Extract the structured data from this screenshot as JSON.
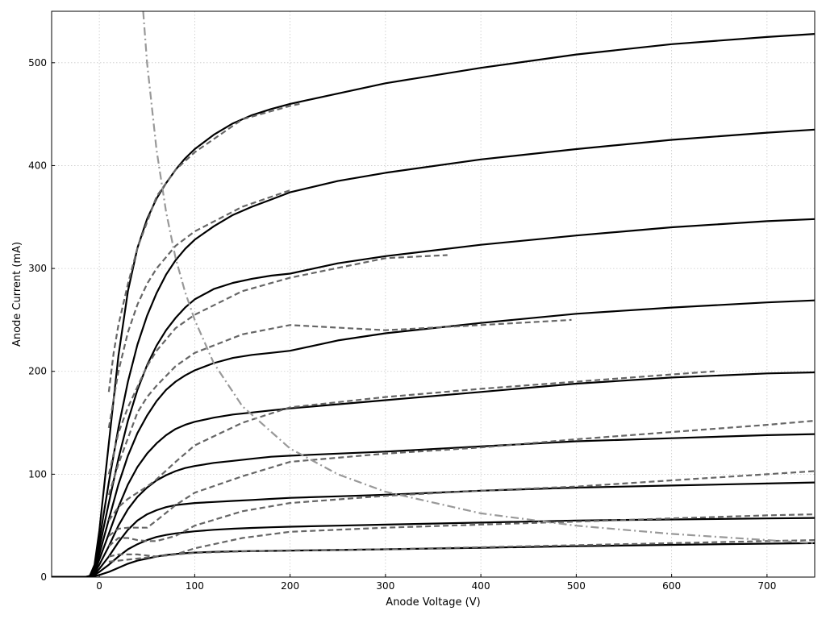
{
  "chart_data": {
    "type": "line",
    "title": "",
    "xlabel": "Anode Voltage (V)",
    "ylabel": "Anode Current (mA)",
    "xlim": [
      -50,
      750
    ],
    "ylim": [
      0,
      550
    ],
    "xticks": [
      0,
      100,
      200,
      300,
      400,
      500,
      600,
      700
    ],
    "yticks": [
      0,
      100,
      200,
      300,
      400,
      500
    ],
    "grid": true,
    "legend": "none",
    "colors": {
      "model": "#000000",
      "measured": "#666666",
      "dissipation": "#999999"
    },
    "series": [
      {
        "style": "model",
        "x": [
          -50,
          -20,
          -15,
          -10,
          -5,
          0,
          10,
          20,
          30,
          40,
          50,
          60,
          70,
          80,
          90,
          100,
          120,
          140,
          160,
          180,
          200,
          250,
          300,
          400,
          500,
          600,
          700,
          750
        ],
        "values": [
          0,
          0,
          0,
          0.3,
          1,
          2,
          5,
          9,
          13,
          16,
          18,
          20,
          21.5,
          22.5,
          23.2,
          23.8,
          24.5,
          25,
          25.3,
          25.5,
          25.7,
          26.3,
          27,
          28.5,
          30,
          31.3,
          32.5,
          33
        ]
      },
      {
        "style": "model",
        "x": [
          -50,
          -20,
          -15,
          -10,
          -5,
          0,
          10,
          20,
          30,
          40,
          50,
          60,
          70,
          80,
          90,
          100,
          120,
          140,
          160,
          180,
          200,
          250,
          300,
          400,
          500,
          600,
          700,
          750
        ],
        "values": [
          0,
          0,
          0,
          0.4,
          2,
          5,
          12,
          20,
          27,
          32,
          36,
          39,
          41,
          42.5,
          43.5,
          44.5,
          46,
          47,
          47.8,
          48.4,
          49,
          50,
          51,
          53,
          55,
          56,
          57,
          57.5
        ]
      },
      {
        "style": "model",
        "x": [
          -50,
          -20,
          -15,
          -10,
          -5,
          0,
          10,
          20,
          30,
          40,
          50,
          60,
          70,
          80,
          90,
          100,
          120,
          140,
          160,
          180,
          200,
          250,
          300,
          400,
          500,
          600,
          700,
          750
        ],
        "values": [
          0,
          0,
          0,
          0.5,
          3,
          8,
          20,
          34,
          46,
          55,
          61,
          65,
          68,
          70,
          71,
          72,
          73,
          74,
          75,
          76,
          77,
          78.5,
          80,
          84,
          87,
          89,
          91,
          92
        ]
      },
      {
        "style": "model",
        "x": [
          -50,
          -20,
          -15,
          -10,
          -5,
          0,
          10,
          20,
          30,
          40,
          50,
          60,
          70,
          80,
          90,
          100,
          120,
          140,
          160,
          180,
          200,
          250,
          300,
          400,
          500,
          600,
          700,
          750
        ],
        "values": [
          0,
          0,
          0,
          0.6,
          4,
          12,
          30,
          50,
          66,
          78,
          87,
          94,
          99,
          103,
          106,
          108,
          111,
          113,
          115,
          117,
          118,
          120,
          122,
          127,
          132,
          135,
          138,
          139
        ]
      },
      {
        "style": "model",
        "x": [
          -50,
          -20,
          -15,
          -10,
          -5,
          0,
          10,
          20,
          30,
          40,
          50,
          60,
          70,
          80,
          90,
          100,
          120,
          140,
          160,
          180,
          200,
          250,
          300,
          400,
          500,
          600,
          700,
          750
        ],
        "values": [
          0,
          0,
          0,
          0.7,
          5,
          17,
          42,
          68,
          90,
          107,
          120,
          130,
          138,
          144,
          148,
          151,
          155,
          158,
          160,
          162,
          164,
          168,
          172,
          180,
          188,
          194,
          198,
          199
        ]
      },
      {
        "style": "model",
        "x": [
          -50,
          -20,
          -15,
          -10,
          -5,
          0,
          10,
          20,
          30,
          40,
          50,
          60,
          70,
          80,
          90,
          100,
          120,
          140,
          160,
          180,
          200,
          250,
          300,
          400,
          500,
          600,
          700,
          750
        ],
        "values": [
          0,
          0,
          0,
          0.8,
          6,
          22,
          56,
          90,
          118,
          140,
          157,
          171,
          182,
          190,
          196,
          201,
          208,
          213,
          216,
          218,
          220,
          230,
          237,
          247,
          256,
          262,
          267,
          269
        ]
      },
      {
        "style": "model",
        "x": [
          -50,
          -20,
          -15,
          -10,
          -5,
          0,
          10,
          20,
          30,
          40,
          50,
          60,
          70,
          80,
          90,
          100,
          120,
          140,
          160,
          180,
          200,
          250,
          300,
          400,
          500,
          600,
          700,
          750
        ],
        "values": [
          0,
          0,
          0,
          0.9,
          8,
          28,
          72,
          115,
          152,
          182,
          206,
          225,
          240,
          252,
          262,
          270,
          280,
          286,
          290,
          293,
          295,
          305,
          312,
          323,
          332,
          340,
          346,
          348
        ]
      },
      {
        "style": "model",
        "x": [
          -50,
          -20,
          -15,
          -10,
          -5,
          0,
          10,
          20,
          30,
          40,
          50,
          60,
          70,
          80,
          90,
          100,
          120,
          140,
          160,
          180,
          200,
          250,
          300,
          400,
          500,
          600,
          700,
          750
        ],
        "values": [
          0,
          0,
          0,
          1,
          10,
          35,
          92,
          145,
          190,
          226,
          254,
          276,
          294,
          308,
          319,
          328,
          341,
          352,
          360,
          367,
          374,
          385,
          393,
          406,
          416,
          425,
          432,
          435
        ]
      },
      {
        "style": "model",
        "x": [
          -50,
          -20,
          -15,
          -10,
          -5,
          0,
          10,
          20,
          30,
          40,
          50,
          60,
          70,
          80,
          90,
          100,
          120,
          140,
          160,
          180,
          200,
          250,
          300,
          400,
          500,
          600,
          700,
          750
        ],
        "values": [
          0,
          0,
          0,
          1.2,
          12,
          45,
          130,
          215,
          278,
          320,
          348,
          368,
          383,
          396,
          407,
          416,
          430,
          441,
          449,
          455,
          460,
          470,
          480,
          495,
          508,
          518,
          525,
          528
        ]
      },
      {
        "style": "measured",
        "x": [
          10,
          20,
          30,
          40,
          50,
          60,
          80,
          100,
          150,
          200,
          300,
          400,
          500,
          600,
          700,
          750
        ],
        "values": [
          15,
          16,
          17,
          18,
          19,
          20,
          22,
          23.5,
          25,
          26,
          27,
          29,
          31,
          33,
          35,
          36
        ]
      },
      {
        "style": "measured",
        "x": [
          10,
          20,
          30,
          40,
          50,
          60,
          80,
          100,
          150,
          200,
          300,
          400,
          500,
          600,
          700,
          750
        ],
        "values": [
          20,
          22,
          22,
          22,
          21,
          20,
          22,
          28,
          38,
          44,
          48,
          51,
          54,
          57,
          60,
          61
        ]
      },
      {
        "style": "measured",
        "x": [
          10,
          20,
          30,
          40,
          50,
          60,
          80,
          100,
          150,
          200,
          300,
          400,
          500,
          600,
          700,
          750
        ],
        "values": [
          30,
          38,
          38,
          36,
          35,
          35,
          40,
          50,
          64,
          72,
          79,
          84,
          88,
          94,
          100,
          103
        ]
      },
      {
        "style": "measured",
        "x": [
          10,
          20,
          30,
          40,
          50,
          60,
          80,
          100,
          150,
          200,
          300,
          400,
          500,
          600,
          700,
          750
        ],
        "values": [
          40,
          47,
          48,
          48,
          48,
          55,
          70,
          82,
          98,
          112,
          120,
          126,
          134,
          141,
          148,
          152
        ]
      },
      {
        "style": "measured",
        "x": [
          10,
          20,
          30,
          40,
          50,
          60,
          80,
          100,
          150,
          200,
          300,
          400,
          500,
          600,
          645
        ],
        "values": [
          55,
          68,
          76,
          82,
          88,
          95,
          112,
          128,
          150,
          165,
          175,
          183,
          190,
          197,
          200
        ]
      },
      {
        "style": "measured",
        "x": [
          10,
          20,
          30,
          40,
          50,
          60,
          80,
          100,
          150,
          200,
          300,
          400,
          495
        ],
        "values": [
          80,
          110,
          135,
          160,
          175,
          186,
          205,
          218,
          236,
          245,
          240,
          245,
          250
        ]
      },
      {
        "style": "measured",
        "x": [
          10,
          20,
          30,
          40,
          50,
          60,
          80,
          100,
          150,
          200,
          300,
          365
        ],
        "values": [
          100,
          140,
          165,
          185,
          205,
          220,
          242,
          255,
          278,
          291,
          310,
          313
        ]
      },
      {
        "style": "measured",
        "x": [
          10,
          20,
          30,
          40,
          50,
          60,
          80,
          100,
          150,
          200
        ],
        "values": [
          145,
          200,
          238,
          265,
          285,
          300,
          322,
          336,
          360,
          376
        ]
      },
      {
        "style": "measured",
        "x": [
          10,
          15,
          20,
          25,
          30,
          40,
          50,
          60,
          80,
          100,
          150,
          200,
          210
        ],
        "values": [
          180,
          218,
          245,
          265,
          285,
          320,
          345,
          370,
          396,
          413,
          445,
          458,
          460
        ]
      },
      {
        "style": "dissipation",
        "x": [
          46,
          50,
          60,
          70,
          80,
          90,
          100,
          120,
          150,
          200,
          250,
          300,
          400,
          500,
          600,
          700,
          750
        ],
        "values": [
          550,
          500,
          415,
          355,
          310,
          277,
          250,
          208,
          166,
          125,
          100,
          83,
          62,
          50,
          42,
          36,
          33
        ]
      }
    ]
  }
}
